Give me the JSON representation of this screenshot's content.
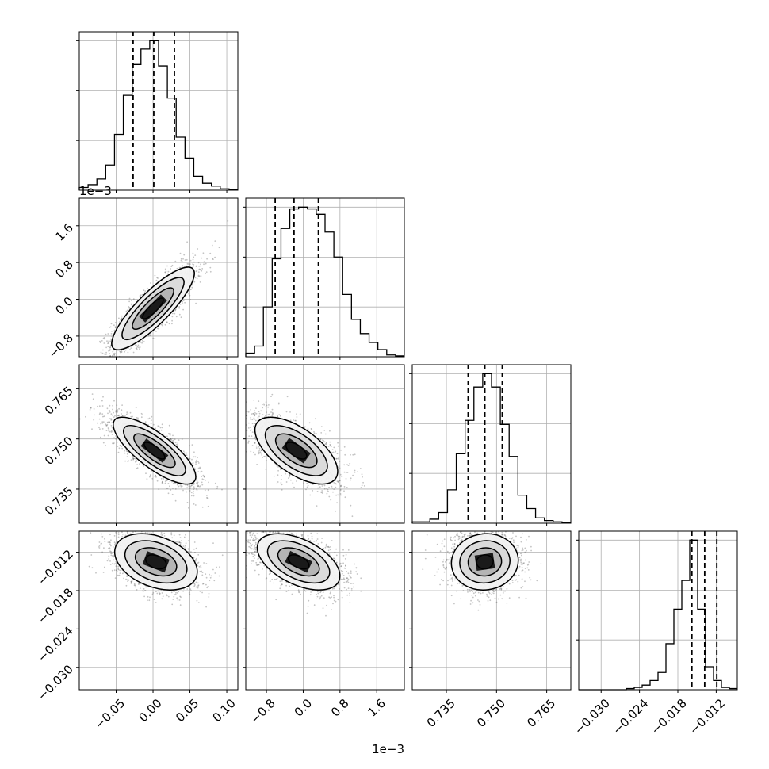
{
  "chart_data": {
    "type": "corner",
    "parameters": [
      {
        "id": "p0",
        "range": [
          -0.1,
          0.115
        ],
        "ticks": [
          -0.05,
          0.0,
          0.05,
          0.1
        ],
        "tick_labels": [
          "−0.05",
          "0.00",
          "0.05",
          "0.10"
        ],
        "quantiles": [
          -0.027,
          0.001,
          0.029
        ],
        "offset_label": ""
      },
      {
        "id": "p1",
        "range": [
          -1.25,
          2.2
        ],
        "ticks": [
          -0.8,
          0.0,
          0.8,
          1.6
        ],
        "tick_labels": [
          "−0.8",
          "0.0",
          "0.8",
          "1.6"
        ],
        "quantiles": [
          -0.61,
          -0.2,
          0.33
        ],
        "offset_label": "1e−3"
      },
      {
        "id": "p2",
        "range": [
          0.7248,
          0.7722
        ],
        "ticks": [
          0.735,
          0.75,
          0.765
        ],
        "tick_labels": [
          "0.735",
          "0.750",
          "0.765"
        ],
        "quantiles": [
          0.7415,
          0.7465,
          0.7517
        ],
        "offset_label": ""
      },
      {
        "id": "p3",
        "range": [
          -0.0335,
          -0.0087
        ],
        "ticks": [
          -0.03,
          -0.024,
          -0.018,
          -0.012
        ],
        "tick_labels": [
          "−0.030",
          "−0.024",
          "−0.018",
          "−0.012"
        ],
        "quantiles": [
          -0.0158,
          -0.0138,
          -0.0119
        ],
        "offset_label": ""
      }
    ],
    "histograms": [
      {
        "param": "p0",
        "edges_range": [
          -0.1,
          0.115
        ],
        "counts": [
          2,
          4,
          8,
          18,
          40,
          68,
          90,
          101,
          107,
          89,
          66,
          38,
          23,
          10,
          5,
          3,
          1,
          0.5
        ]
      },
      {
        "param": "p1",
        "edges_range": [
          -1.25,
          2.2
        ],
        "counts": [
          2,
          6,
          28,
          55,
          72,
          83,
          84,
          83,
          80,
          70,
          56,
          35,
          21,
          13,
          8,
          4,
          1,
          0.5
        ]
      },
      {
        "param": "p2",
        "edges_range": [
          0.7248,
          0.7722
        ],
        "counts": [
          1,
          1,
          3,
          8,
          25,
          52,
          77,
          102,
          112,
          102,
          74,
          50,
          21,
          11,
          4,
          2,
          1,
          0.5
        ]
      },
      {
        "param": "p3",
        "edges_range": [
          -0.0335,
          -0.0087
        ],
        "counts": [
          0,
          0,
          0,
          0,
          0,
          0,
          1,
          2,
          4,
          8,
          15,
          40,
          70,
          95,
          130,
          70,
          20,
          8,
          2,
          1
        ]
      }
    ],
    "pairs": [
      {
        "x": "p0",
        "y": "p1",
        "mean": [
          0.0,
          -0.2
        ],
        "sd": [
          0.028,
          0.45
        ],
        "corr": 0.85
      },
      {
        "x": "p0",
        "y": "p2",
        "mean": [
          0.002,
          0.7465
        ],
        "sd": [
          0.028,
          0.005
        ],
        "corr": -0.78
      },
      {
        "x": "p1",
        "y": "p2",
        "mean": [
          -0.15,
          0.7465
        ],
        "sd": [
          0.45,
          0.005
        ],
        "corr": -0.62
      },
      {
        "x": "p0",
        "y": "p3",
        "mean": [
          0.004,
          -0.0135
        ],
        "sd": [
          0.028,
          0.0022
        ],
        "corr": -0.35
      },
      {
        "x": "p1",
        "y": "p3",
        "mean": [
          -0.1,
          -0.0135
        ],
        "sd": [
          0.45,
          0.0022
        ],
        "corr": -0.5
      },
      {
        "x": "p2",
        "y": "p3",
        "mean": [
          0.7465,
          -0.0135
        ],
        "sd": [
          0.005,
          0.0022
        ],
        "corr": 0.05
      }
    ],
    "contour_levels_sigma": [
      0.5,
      1.0,
      1.5,
      2.0
    ],
    "grid": true,
    "colors": {
      "line": "#000000",
      "grid": "#b0b0b0",
      "points": "#555555",
      "frame": "#000000"
    }
  }
}
